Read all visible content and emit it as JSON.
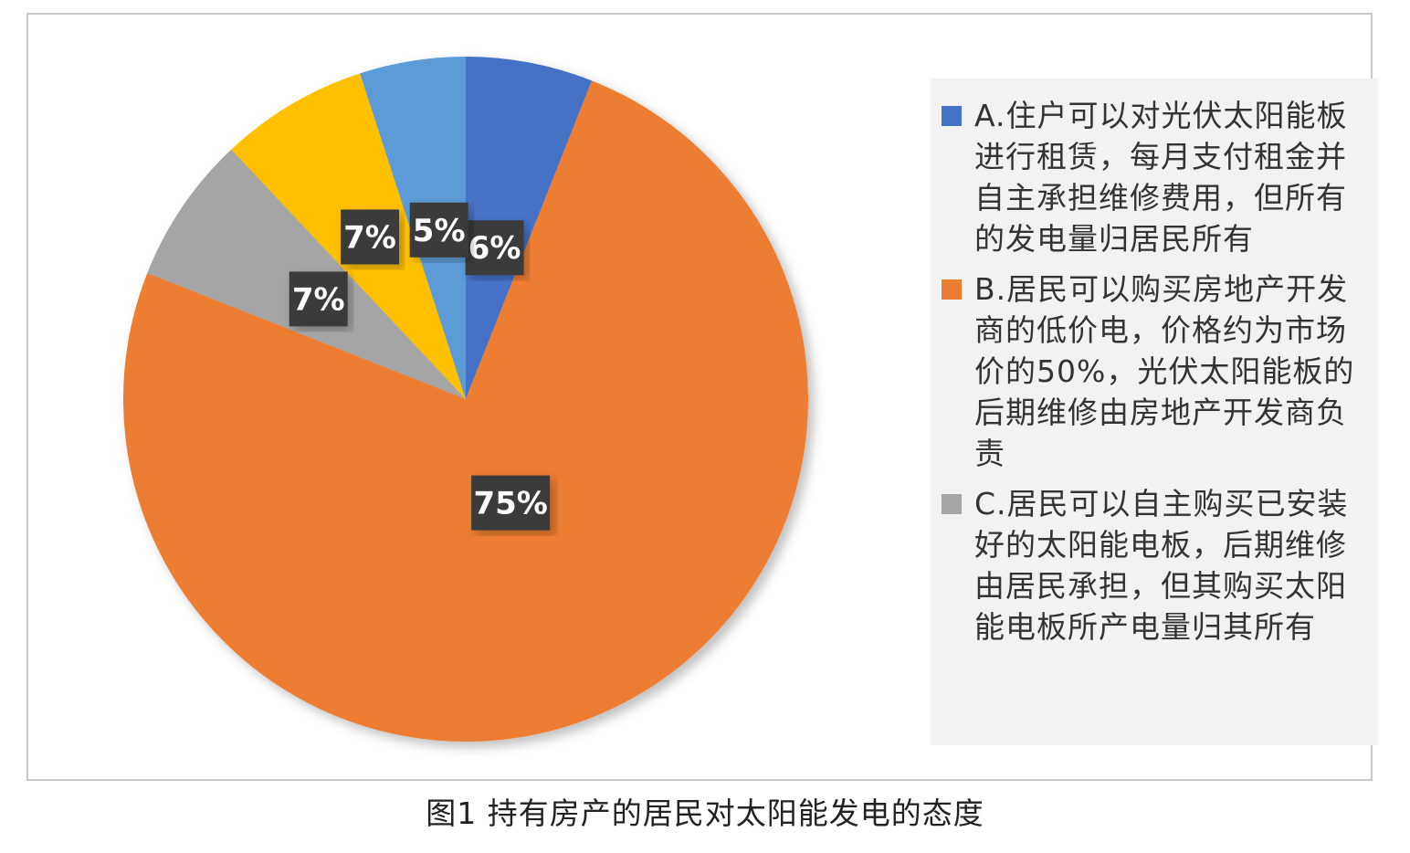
{
  "chart_data": {
    "type": "pie",
    "title": "",
    "slices": [
      {
        "label": "A.住户可以对光伏太阳能板进行租赁，每月支付租金并自主承担维修费用，但所有的发电量归居民所有",
        "value": 6,
        "display": "6%",
        "color": "#4472C4"
      },
      {
        "label": "B.居民可以购买房地产开发商的低价电，价格约为市场价的50%，光伏太阳能板的后期维修由房地产开发商负责",
        "value": 75,
        "display": "75%",
        "color": "#ED7D31"
      },
      {
        "label": "C.居民可以自主购买已安装好的太阳能电板，后期维修由居民承担，但其购买太阳能电板所产电量归其所有",
        "value": 7,
        "display": "7%",
        "color": "#A5A5A5"
      },
      {
        "label": "",
        "value": 7,
        "display": "7%",
        "color": "#FFC000"
      },
      {
        "label": "",
        "value": 5,
        "display": "5%",
        "color": "#5B9BD5"
      }
    ],
    "legend_placement": "right"
  },
  "caption": "图1  持有房产的居民对太阳能发电的态度"
}
